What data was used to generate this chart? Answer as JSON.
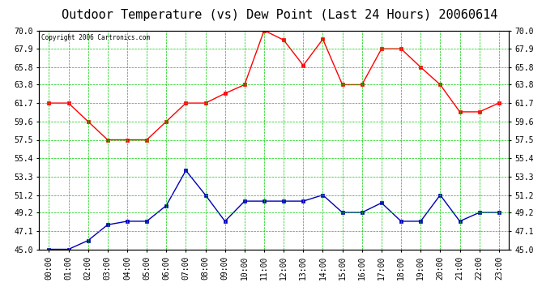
{
  "title": "Outdoor Temperature (vs) Dew Point (Last 24 Hours) 20060614",
  "copyright": "Copyright 2006 Cartronics.com",
  "hours": [
    "00:00",
    "01:00",
    "02:00",
    "03:00",
    "04:00",
    "05:00",
    "06:00",
    "07:00",
    "08:00",
    "09:00",
    "10:00",
    "11:00",
    "12:00",
    "13:00",
    "14:00",
    "15:00",
    "16:00",
    "17:00",
    "18:00",
    "19:00",
    "20:00",
    "21:00",
    "22:00",
    "23:00"
  ],
  "temp": [
    61.7,
    61.7,
    59.6,
    57.5,
    57.5,
    57.5,
    59.6,
    61.7,
    61.7,
    62.8,
    63.8,
    70.0,
    68.9,
    66.0,
    69.0,
    63.8,
    63.8,
    67.9,
    67.9,
    65.8,
    63.8,
    60.7,
    60.7,
    61.7
  ],
  "dew": [
    45.0,
    45.0,
    46.0,
    47.8,
    48.2,
    48.2,
    50.0,
    54.0,
    51.2,
    48.2,
    50.5,
    50.5,
    50.5,
    50.5,
    51.2,
    49.2,
    49.2,
    50.3,
    48.2,
    48.2,
    51.2,
    48.2,
    49.2,
    49.2
  ],
  "ylim": [
    45.0,
    70.0
  ],
  "yticks": [
    45.0,
    47.1,
    49.2,
    51.2,
    53.3,
    55.4,
    57.5,
    59.6,
    61.7,
    63.8,
    65.8,
    67.9,
    70.0
  ],
  "ytick_labels": [
    "45.0",
    "47.1",
    "49.2",
    "51.2",
    "53.3",
    "55.4",
    "57.5",
    "59.6",
    "61.7",
    "63.8",
    "65.8",
    "67.9",
    "70.0"
  ],
  "temp_color": "#ff0000",
  "dew_color": "#0000bb",
  "grid_color": "#00cc00",
  "bg_color": "#ffffff",
  "title_fontsize": 11,
  "tick_fontsize": 7,
  "marker": "s",
  "marker_size": 2.5
}
